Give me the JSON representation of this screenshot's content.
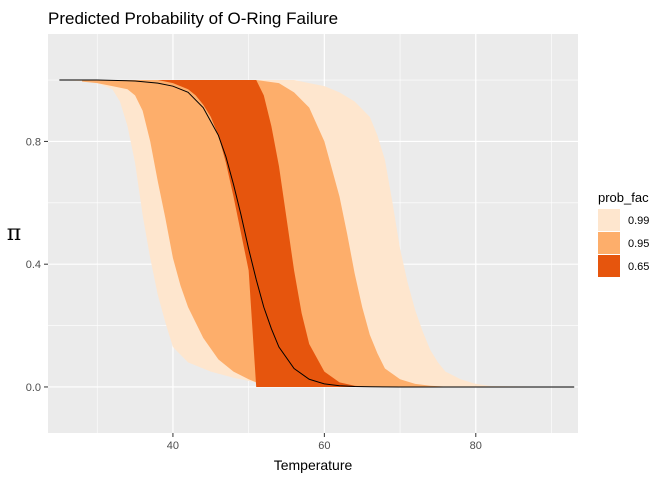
{
  "chart_data": {
    "type": "area",
    "title": "Predicted Probability of O-Ring Failure",
    "xlabel": "Temperature",
    "ylabel": "π",
    "xlim": [
      23.5,
      93.5
    ],
    "ylim": [
      -0.15,
      1.15
    ],
    "x_ticks": [
      40,
      60,
      80
    ],
    "y_ticks": [
      0.0,
      0.4,
      0.8
    ],
    "y_tick_labels": [
      "0.0",
      "0.4",
      "0.8"
    ],
    "grid": true,
    "legend": {
      "title": "prob_fac",
      "position": "right",
      "entries": [
        {
          "label": "0.99",
          "color": "#fee6ce"
        },
        {
          "label": "0.95",
          "color": "#fdae6b"
        },
        {
          "label": "0.65",
          "color": "#e6550d"
        }
      ]
    },
    "series": [
      {
        "name": "0.99",
        "color": "#fee6ce",
        "x": [
          25,
          29,
          30,
          32,
          33,
          34,
          35,
          36,
          37,
          38,
          39,
          40,
          42,
          45,
          48,
          50,
          51,
          54,
          56,
          58,
          60,
          62,
          64,
          66,
          67,
          68,
          69,
          70,
          71,
          72,
          73,
          74,
          75,
          76,
          78,
          80,
          82,
          93
        ],
        "lower": [
          1.0,
          0.995,
          0.99,
          0.97,
          0.93,
          0.85,
          0.73,
          0.56,
          0.42,
          0.3,
          0.21,
          0.13,
          0.08,
          0.05,
          0.03,
          0.02,
          0.015,
          0.008,
          0.004,
          0.002,
          0.001,
          0.0,
          0.0,
          0.0,
          0.0,
          0.0,
          0.0,
          0.0,
          0.0,
          0.0,
          0.0,
          0.0,
          0.0,
          0.0,
          0.0,
          0.0,
          0.0,
          0.0
        ],
        "upper": [
          1.0,
          1.0,
          1.0,
          1.0,
          1.0,
          1.0,
          1.0,
          1.0,
          1.0,
          1.0,
          1.0,
          1.0,
          1.0,
          1.0,
          1.0,
          1.0,
          1.0,
          1.0,
          1.0,
          0.99,
          0.98,
          0.96,
          0.93,
          0.88,
          0.82,
          0.74,
          0.6,
          0.45,
          0.34,
          0.25,
          0.18,
          0.12,
          0.08,
          0.05,
          0.025,
          0.01,
          0.003,
          0.0
        ]
      },
      {
        "name": "0.95",
        "color": "#fdae6b",
        "x": [
          28,
          30,
          32,
          34,
          35,
          36,
          37,
          38,
          39,
          40,
          41,
          42,
          44,
          46,
          48,
          50,
          51,
          54,
          56,
          58,
          60,
          62,
          63,
          64,
          65,
          66,
          67,
          68,
          70,
          72,
          74,
          76,
          80
        ],
        "lower": [
          0.995,
          0.99,
          0.98,
          0.97,
          0.95,
          0.9,
          0.8,
          0.67,
          0.55,
          0.42,
          0.33,
          0.26,
          0.16,
          0.09,
          0.05,
          0.025,
          0.015,
          0.008,
          0.004,
          0.002,
          0.001,
          0.0,
          0.0,
          0.0,
          0.0,
          0.0,
          0.0,
          0.0,
          0.0,
          0.0,
          0.0,
          0.0,
          0.0
        ],
        "upper": [
          1.0,
          1.0,
          1.0,
          1.0,
          1.0,
          1.0,
          1.0,
          1.0,
          1.0,
          1.0,
          1.0,
          1.0,
          1.0,
          1.0,
          1.0,
          1.0,
          1.0,
          0.99,
          0.96,
          0.91,
          0.8,
          0.62,
          0.5,
          0.37,
          0.26,
          0.17,
          0.11,
          0.06,
          0.025,
          0.01,
          0.004,
          0.001,
          0.0
        ]
      },
      {
        "name": "0.65",
        "color": "#e6550d",
        "x": [
          36,
          38,
          40,
          42,
          43,
          44,
          45,
          46,
          47,
          48,
          49,
          50,
          51,
          52,
          53,
          54,
          55,
          56,
          57,
          58,
          60,
          62,
          64,
          66
        ],
        "lower": [
          1.0,
          1.0,
          0.99,
          0.97,
          0.95,
          0.92,
          0.88,
          0.82,
          0.73,
          0.62,
          0.5,
          0.38,
          0.0,
          0.0,
          0.0,
          0.0,
          0.0,
          0.0,
          0.0,
          0.0,
          0.0,
          0.0,
          0.0,
          0.0
        ],
        "upper": [
          1.0,
          1.0,
          1.0,
          1.0,
          1.0,
          1.0,
          1.0,
          1.0,
          1.0,
          1.0,
          1.0,
          1.0,
          1.0,
          0.95,
          0.85,
          0.72,
          0.55,
          0.38,
          0.24,
          0.14,
          0.05,
          0.015,
          0.004,
          0.0
        ]
      }
    ],
    "line": {
      "name": "",
      "color": "#000000",
      "x": [
        25,
        30,
        35,
        38,
        40,
        42,
        44,
        46,
        47,
        48,
        49,
        50,
        51,
        52,
        53,
        54,
        56,
        58,
        60,
        62,
        64,
        66,
        70,
        75,
        93
      ],
      "y": [
        1.0,
        1.0,
        0.997,
        0.99,
        0.98,
        0.96,
        0.91,
        0.82,
        0.75,
        0.66,
        0.56,
        0.45,
        0.35,
        0.26,
        0.19,
        0.13,
        0.06,
        0.025,
        0.01,
        0.004,
        0.0015,
        0.0005,
        0.0,
        0.0,
        0.0
      ]
    }
  }
}
